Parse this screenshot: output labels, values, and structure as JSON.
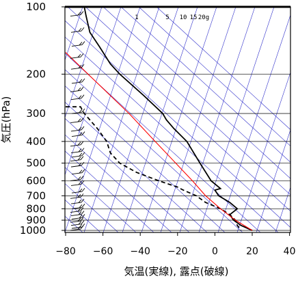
{
  "chart_data": {
    "type": "line",
    "title": "",
    "xlabel": "気温(実線), 露点(破線)",
    "ylabel": "気圧(hPa)",
    "xlim": [
      -80,
      40
    ],
    "ylim_hpa": [
      1050,
      100
    ],
    "y_scale": "log",
    "x_ticks": [
      "−80",
      "−60",
      "−40",
      "−20",
      "0",
      "20",
      "40"
    ],
    "y_ticks": [
      "100",
      "200",
      "300",
      "400",
      "500",
      "600",
      "700",
      "800",
      "900",
      "1000"
    ],
    "y_tick_values": [
      100,
      200,
      300,
      400,
      500,
      600,
      700,
      800,
      900,
      1000
    ],
    "mixing_ratio_labels": [
      {
        "text": "1",
        "w": 1
      },
      {
        "text": "5",
        "w": 5
      },
      {
        "text": "10",
        "w": 10
      },
      {
        "text": "15",
        "w": 15
      },
      {
        "text": "20g",
        "w": 20
      }
    ],
    "series": [
      {
        "style": "solid",
        "color": "#000000",
        "points": [
          [
            100,
            -70
          ],
          [
            110,
            -69
          ],
          [
            130,
            -67
          ],
          [
            150,
            -62
          ],
          [
            180,
            -56
          ],
          [
            200,
            -51
          ],
          [
            250,
            -38
          ],
          [
            300,
            -28
          ],
          [
            320,
            -26
          ],
          [
            350,
            -22
          ],
          [
            400,
            -15
          ],
          [
            500,
            -8
          ],
          [
            600,
            -2
          ],
          [
            650,
            3
          ],
          [
            660,
            0
          ],
          [
            700,
            2
          ],
          [
            750,
            8
          ],
          [
            800,
            12
          ],
          [
            850,
            8
          ],
          [
            900,
            10
          ],
          [
            950,
            14
          ],
          [
            1000,
            20
          ]
        ]
      },
      {
        "style": "dashed",
        "color": "#000000",
        "points": [
          [
            280,
            -80
          ],
          [
            280,
            -72
          ],
          [
            300,
            -70
          ],
          [
            350,
            -63
          ],
          [
            400,
            -58
          ],
          [
            450,
            -56
          ],
          [
            500,
            -51
          ],
          [
            550,
            -42
          ],
          [
            600,
            -30
          ],
          [
            620,
            -25
          ],
          [
            640,
            -20
          ],
          [
            660,
            -17
          ],
          [
            700,
            -10
          ],
          [
            750,
            -5
          ],
          [
            800,
            3
          ],
          [
            850,
            8
          ],
          [
            900,
            11
          ],
          [
            950,
            12
          ],
          [
            1000,
            14
          ]
        ]
      },
      {
        "style": "solid",
        "color": "#ff0000",
        "points": [
          [
            160,
            -80
          ],
          [
            200,
            -68
          ],
          [
            300,
            -46
          ],
          [
            400,
            -32
          ],
          [
            500,
            -21
          ],
          [
            600,
            -12
          ],
          [
            700,
            -5
          ],
          [
            800,
            3
          ],
          [
            900,
            11
          ],
          [
            1000,
            20
          ]
        ]
      }
    ],
    "wind_barbs": [
      {
        "p": 110
      },
      {
        "p": 130
      },
      {
        "p": 150
      },
      {
        "p": 170
      },
      {
        "p": 190
      },
      {
        "p": 220
      },
      {
        "p": 240
      },
      {
        "p": 260
      },
      {
        "p": 300
      },
      {
        "p": 330
      },
      {
        "p": 360
      },
      {
        "p": 380
      },
      {
        "p": 420
      },
      {
        "p": 450
      },
      {
        "p": 470
      },
      {
        "p": 490
      },
      {
        "p": 520
      },
      {
        "p": 560
      },
      {
        "p": 600
      },
      {
        "p": 630
      },
      {
        "p": 680
      },
      {
        "p": 720
      },
      {
        "p": 760
      },
      {
        "p": 800
      },
      {
        "p": 830
      },
      {
        "p": 860
      },
      {
        "p": 890
      },
      {
        "p": 920
      },
      {
        "p": 950
      },
      {
        "p": 980
      },
      {
        "p": 1000
      }
    ],
    "colors": {
      "temperature": "#000000",
      "dewpoint": "#000000",
      "parcel": "#ff0000",
      "background_lines": "#3333cc",
      "isobars": "#000000"
    },
    "grid": true
  }
}
